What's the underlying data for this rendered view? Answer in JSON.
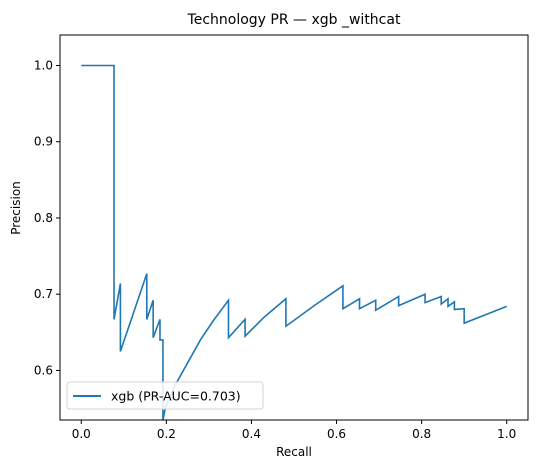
{
  "chart_data": {
    "type": "line",
    "title": "Technology PR — xgb _withcat",
    "xlabel": "Recall",
    "ylabel": "Precision",
    "xlim": [
      -0.05,
      1.05
    ],
    "ylim": [
      0.535,
      1.04
    ],
    "xticks": [
      0.0,
      0.2,
      0.4,
      0.6,
      0.8,
      1.0
    ],
    "xtick_labels": [
      "0.0",
      "0.2",
      "0.4",
      "0.6",
      "0.8",
      "1.0"
    ],
    "yticks": [
      0.6,
      0.7,
      0.8,
      0.9,
      1.0
    ],
    "ytick_labels": [
      "0.6",
      "0.7",
      "0.8",
      "0.9",
      "1.0"
    ],
    "grid": false,
    "legend_position": "lower-left",
    "series": [
      {
        "name": "xgb (PR-AUC=0.703)",
        "color": "#1f77b4",
        "x": [
          0.0,
          0.077,
          0.077,
          0.077,
          0.092,
          0.092,
          0.154,
          0.154,
          0.169,
          0.169,
          0.185,
          0.185,
          0.192,
          0.192,
          0.198,
          0.22,
          0.25,
          0.28,
          0.31,
          0.346,
          0.346,
          0.385,
          0.385,
          0.43,
          0.481,
          0.481,
          0.55,
          0.615,
          0.615,
          0.654,
          0.654,
          0.692,
          0.692,
          0.746,
          0.746,
          0.808,
          0.808,
          0.846,
          0.846,
          0.862,
          0.862,
          0.877,
          0.877,
          0.9,
          0.9,
          0.95,
          1.0
        ],
        "y": [
          1.0,
          1.0,
          1.0,
          0.667,
          0.714,
          0.625,
          0.727,
          0.667,
          0.692,
          0.643,
          0.667,
          0.64,
          0.64,
          0.535,
          0.552,
          0.58,
          0.61,
          0.64,
          0.665,
          0.692,
          0.643,
          0.667,
          0.645,
          0.67,
          0.694,
          0.658,
          0.686,
          0.711,
          0.681,
          0.694,
          0.681,
          0.692,
          0.679,
          0.697,
          0.685,
          0.7,
          0.689,
          0.697,
          0.687,
          0.694,
          0.684,
          0.69,
          0.68,
          0.681,
          0.662,
          0.673,
          0.684
        ]
      }
    ]
  }
}
